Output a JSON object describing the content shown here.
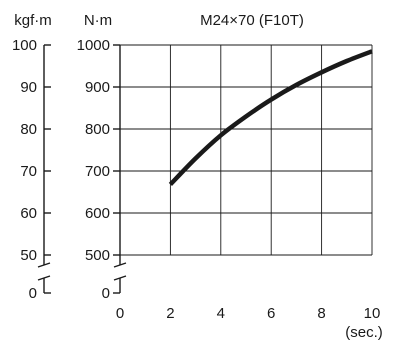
{
  "chart_data": {
    "type": "line",
    "title": "M24×70 (F10T)",
    "xlabel": "(sec.)",
    "ylabel": "N·m",
    "ylabel_secondary": "kgf·m",
    "xlim": [
      0,
      10
    ],
    "ylim": [
      500,
      1000
    ],
    "axis_break": true,
    "grid": true,
    "x_ticks": [
      "0",
      "2",
      "4",
      "6",
      "8",
      "10"
    ],
    "y_ticks": [
      "0",
      "500",
      "600",
      "700",
      "800",
      "900",
      "1000"
    ],
    "y2_ticks": [
      "0",
      "50",
      "60",
      "70",
      "80",
      "90",
      "100"
    ],
    "series": [
      {
        "x": [
          2,
          3,
          4,
          5,
          6,
          7,
          8,
          9,
          10
        ],
        "values": [
          668,
          730,
          785,
          830,
          870,
          905,
          935,
          962,
          985
        ],
        "color": "#1a1a1a"
      }
    ]
  }
}
